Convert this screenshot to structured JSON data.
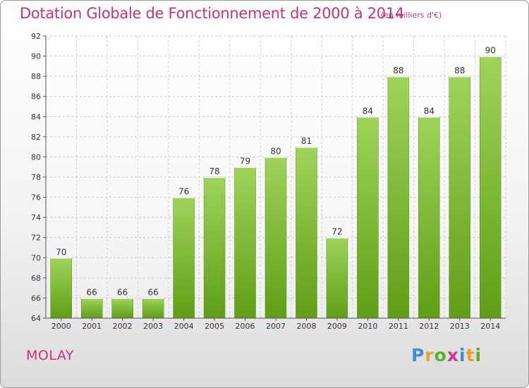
{
  "title": "Dotation Globale de Fonctionnement de 2000 à 2014",
  "unit_label": "(en milliers d'€)",
  "town": "MOLAY",
  "brand": [
    "P",
    "r",
    "o",
    "x",
    "i",
    "t",
    "i"
  ],
  "colors": {
    "title": "#c8327a",
    "bar_top": "#9fd45a",
    "bar_bottom": "#5f9e16",
    "brand_letters": [
      "#3a8fd0",
      "#e8a22a",
      "#5ab02e",
      "#d6338a",
      "#3a8fd0",
      "#e8a22a",
      "#5ab02e"
    ]
  },
  "chart_data": {
    "type": "bar",
    "categories": [
      "2000",
      "2001",
      "2002",
      "2003",
      "2004",
      "2005",
      "2006",
      "2007",
      "2008",
      "2009",
      "2010",
      "2011",
      "2012",
      "2013",
      "2014"
    ],
    "values": [
      70,
      66,
      66,
      66,
      76,
      78,
      79,
      80,
      81,
      72,
      84,
      88,
      84,
      88,
      90
    ],
    "ylim": [
      64,
      92
    ],
    "yticks": [
      "64",
      "66",
      "68",
      "70",
      "72",
      "74",
      "76",
      "78",
      "80",
      "82",
      "84",
      "86",
      "88",
      "90",
      "92"
    ],
    "grid": true
  }
}
